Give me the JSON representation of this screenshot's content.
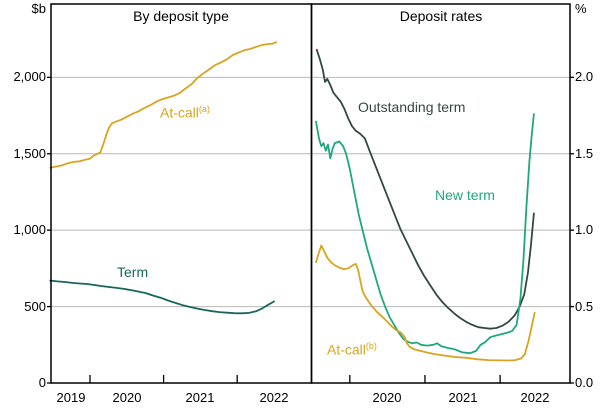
{
  "chart_data": [
    {
      "type": "line",
      "panel": "left",
      "title": "By deposit type",
      "unit": "$b",
      "grid": true,
      "legend_position": "inline-annotations",
      "xlim": [
        2019.47,
        2023.01
      ],
      "ylim": [
        0,
        2480
      ],
      "xticks": [
        2020,
        2021,
        2022
      ],
      "xtick_labels": [
        {
          "year": 2019,
          "label": "2019"
        },
        {
          "year": 2020,
          "label": "2020"
        },
        {
          "year": 2021,
          "label": "2021"
        },
        {
          "year": 2022,
          "label": "2022"
        }
      ],
      "yticks": [
        {
          "value": 0,
          "label": "0"
        },
        {
          "value": 500,
          "label": "500"
        },
        {
          "value": 1000,
          "label": "1,000"
        },
        {
          "value": 1500,
          "label": "1,500"
        },
        {
          "value": 2000,
          "label": "2,000"
        }
      ],
      "series": [
        {
          "name": "at-call-outstanding",
          "label": "At-call",
          "label_sup": "(a)",
          "color": "#D9A421",
          "points": [
            [
              2019.46,
              1408
            ],
            [
              2019.54,
              1417
            ],
            [
              2019.62,
              1424
            ],
            [
              2019.7,
              1438
            ],
            [
              2019.78,
              1447
            ],
            [
              2019.86,
              1451
            ],
            [
              2019.94,
              1462
            ],
            [
              2020.0,
              1468
            ],
            [
              2020.05,
              1488
            ],
            [
              2020.1,
              1500
            ],
            [
              2020.14,
              1508
            ],
            [
              2020.18,
              1560
            ],
            [
              2020.22,
              1622
            ],
            [
              2020.26,
              1672
            ],
            [
              2020.3,
              1700
            ],
            [
              2020.35,
              1710
            ],
            [
              2020.42,
              1722
            ],
            [
              2020.5,
              1742
            ],
            [
              2020.58,
              1762
            ],
            [
              2020.66,
              1778
            ],
            [
              2020.74,
              1800
            ],
            [
              2020.82,
              1818
            ],
            [
              2020.9,
              1840
            ],
            [
              2020.98,
              1857
            ],
            [
              2021.06,
              1868
            ],
            [
              2021.14,
              1880
            ],
            [
              2021.22,
              1898
            ],
            [
              2021.3,
              1928
            ],
            [
              2021.38,
              1956
            ],
            [
              2021.46,
              1996
            ],
            [
              2021.54,
              2026
            ],
            [
              2021.62,
              2052
            ],
            [
              2021.7,
              2080
            ],
            [
              2021.78,
              2098
            ],
            [
              2021.86,
              2118
            ],
            [
              2021.94,
              2146
            ],
            [
              2022.02,
              2162
            ],
            [
              2022.1,
              2178
            ],
            [
              2022.18,
              2186
            ],
            [
              2022.26,
              2200
            ],
            [
              2022.34,
              2212
            ],
            [
              2022.42,
              2218
            ],
            [
              2022.48,
              2220
            ],
            [
              2022.53,
              2230
            ]
          ]
        },
        {
          "name": "term-outstanding",
          "label": "Term",
          "label_sup": "",
          "color": "#17685A",
          "points": [
            [
              2019.46,
              670
            ],
            [
              2019.56,
              665
            ],
            [
              2019.66,
              661
            ],
            [
              2019.76,
              655
            ],
            [
              2019.86,
              651
            ],
            [
              2019.96,
              648
            ],
            [
              2020.06,
              641
            ],
            [
              2020.16,
              634
            ],
            [
              2020.26,
              628
            ],
            [
              2020.36,
              622
            ],
            [
              2020.46,
              616
            ],
            [
              2020.56,
              608
            ],
            [
              2020.66,
              598
            ],
            [
              2020.76,
              588
            ],
            [
              2020.86,
              572
            ],
            [
              2020.96,
              558
            ],
            [
              2021.06,
              540
            ],
            [
              2021.16,
              524
            ],
            [
              2021.26,
              509
            ],
            [
              2021.36,
              497
            ],
            [
              2021.46,
              487
            ],
            [
              2021.56,
              478
            ],
            [
              2021.66,
              470
            ],
            [
              2021.76,
              464
            ],
            [
              2021.86,
              460
            ],
            [
              2021.96,
              457
            ],
            [
              2022.06,
              456
            ],
            [
              2022.16,
              459
            ],
            [
              2022.26,
              470
            ],
            [
              2022.34,
              488
            ],
            [
              2022.42,
              512
            ],
            [
              2022.5,
              533
            ]
          ]
        }
      ]
    },
    {
      "type": "line",
      "panel": "right",
      "title": "Deposit rates",
      "unit": "%",
      "grid": true,
      "legend_position": "inline-annotations",
      "xlim": [
        2019.49,
        2022.93
      ],
      "ylim": [
        0,
        2.48
      ],
      "xticks": [
        2020,
        2021,
        2022
      ],
      "xtick_labels": [
        {
          "year": 2020,
          "label": "2020"
        },
        {
          "year": 2021,
          "label": "2021"
        },
        {
          "year": 2022,
          "label": "2022"
        }
      ],
      "yticks": [
        {
          "value": 0,
          "label": "0.0"
        },
        {
          "value": 0.5,
          "label": "0.5"
        },
        {
          "value": 1.0,
          "label": "1.0"
        },
        {
          "value": 1.5,
          "label": "1.5"
        },
        {
          "value": 2.0,
          "label": "2.0"
        }
      ],
      "series": [
        {
          "name": "outstanding-term-rate",
          "label": "Outstanding term",
          "label_sup": "",
          "color": "#33493F",
          "points": [
            [
              2019.56,
              2.18
            ],
            [
              2019.6,
              2.12
            ],
            [
              2019.64,
              2.05
            ],
            [
              2019.67,
              1.97
            ],
            [
              2019.7,
              1.99
            ],
            [
              2019.74,
              1.95
            ],
            [
              2019.78,
              1.9
            ],
            [
              2019.83,
              1.87
            ],
            [
              2019.88,
              1.84
            ],
            [
              2019.93,
              1.79
            ],
            [
              2019.98,
              1.73
            ],
            [
              2020.03,
              1.68
            ],
            [
              2020.08,
              1.65
            ],
            [
              2020.14,
              1.63
            ],
            [
              2020.2,
              1.6
            ],
            [
              2020.27,
              1.51
            ],
            [
              2020.35,
              1.41
            ],
            [
              2020.43,
              1.31
            ],
            [
              2020.51,
              1.21
            ],
            [
              2020.59,
              1.11
            ],
            [
              2020.67,
              1.01
            ],
            [
              2020.75,
              0.93
            ],
            [
              2020.83,
              0.85
            ],
            [
              2020.91,
              0.77
            ],
            [
              2020.99,
              0.7
            ],
            [
              2021.07,
              0.64
            ],
            [
              2021.15,
              0.58
            ],
            [
              2021.23,
              0.53
            ],
            [
              2021.31,
              0.49
            ],
            [
              2021.39,
              0.455
            ],
            [
              2021.47,
              0.425
            ],
            [
              2021.55,
              0.4
            ],
            [
              2021.63,
              0.38
            ],
            [
              2021.71,
              0.365
            ],
            [
              2021.79,
              0.36
            ],
            [
              2021.87,
              0.355
            ],
            [
              2021.95,
              0.36
            ],
            [
              2022.03,
              0.375
            ],
            [
              2022.11,
              0.4
            ],
            [
              2022.19,
              0.44
            ],
            [
              2022.26,
              0.5
            ],
            [
              2022.32,
              0.58
            ],
            [
              2022.37,
              0.72
            ],
            [
              2022.41,
              0.9
            ],
            [
              2022.45,
              1.11
            ]
          ]
        },
        {
          "name": "new-term-rate",
          "label": "New term",
          "label_sup": "",
          "color": "#1EA87C",
          "points": [
            [
              2019.55,
              1.71
            ],
            [
              2019.59,
              1.6
            ],
            [
              2019.62,
              1.55
            ],
            [
              2019.65,
              1.57
            ],
            [
              2019.68,
              1.52
            ],
            [
              2019.71,
              1.56
            ],
            [
              2019.74,
              1.47
            ],
            [
              2019.77,
              1.53
            ],
            [
              2019.8,
              1.57
            ],
            [
              2019.86,
              1.58
            ],
            [
              2019.91,
              1.55
            ],
            [
              2019.95,
              1.5
            ],
            [
              2020.0,
              1.4
            ],
            [
              2020.06,
              1.25
            ],
            [
              2020.12,
              1.1
            ],
            [
              2020.17,
              1.0
            ],
            [
              2020.23,
              0.88
            ],
            [
              2020.29,
              0.78
            ],
            [
              2020.35,
              0.68
            ],
            [
              2020.41,
              0.58
            ],
            [
              2020.47,
              0.5
            ],
            [
              2020.53,
              0.43
            ],
            [
              2020.59,
              0.38
            ],
            [
              2020.65,
              0.33
            ],
            [
              2020.71,
              0.29
            ],
            [
              2020.77,
              0.27
            ],
            [
              2020.83,
              0.26
            ],
            [
              2020.89,
              0.265
            ],
            [
              2020.95,
              0.25
            ],
            [
              2021.03,
              0.245
            ],
            [
              2021.11,
              0.25
            ],
            [
              2021.16,
              0.26
            ],
            [
              2021.22,
              0.24
            ],
            [
              2021.3,
              0.23
            ],
            [
              2021.4,
              0.22
            ],
            [
              2021.5,
              0.2
            ],
            [
              2021.6,
              0.195
            ],
            [
              2021.68,
              0.21
            ],
            [
              2021.74,
              0.25
            ],
            [
              2021.8,
              0.267
            ],
            [
              2021.87,
              0.3
            ],
            [
              2021.94,
              0.31
            ],
            [
              2022.02,
              0.32
            ],
            [
              2022.1,
              0.33
            ],
            [
              2022.16,
              0.34
            ],
            [
              2022.22,
              0.38
            ],
            [
              2022.27,
              0.55
            ],
            [
              2022.31,
              0.8
            ],
            [
              2022.35,
              1.15
            ],
            [
              2022.39,
              1.45
            ],
            [
              2022.42,
              1.62
            ],
            [
              2022.45,
              1.76
            ]
          ]
        },
        {
          "name": "at-call-rate",
          "label": "At-call",
          "label_sup": "(b)",
          "color": "#D9A421",
          "points": [
            [
              2019.55,
              0.79
            ],
            [
              2019.58,
              0.84
            ],
            [
              2019.62,
              0.9
            ],
            [
              2019.66,
              0.86
            ],
            [
              2019.7,
              0.82
            ],
            [
              2019.75,
              0.79
            ],
            [
              2019.8,
              0.77
            ],
            [
              2019.86,
              0.755
            ],
            [
              2019.92,
              0.745
            ],
            [
              2019.98,
              0.75
            ],
            [
              2020.04,
              0.77
            ],
            [
              2020.08,
              0.78
            ],
            [
              2020.11,
              0.74
            ],
            [
              2020.14,
              0.67
            ],
            [
              2020.17,
              0.6
            ],
            [
              2020.2,
              0.57
            ],
            [
              2020.24,
              0.54
            ],
            [
              2020.29,
              0.505
            ],
            [
              2020.36,
              0.465
            ],
            [
              2020.44,
              0.43
            ],
            [
              2020.5,
              0.4
            ],
            [
              2020.56,
              0.37
            ],
            [
              2020.62,
              0.345
            ],
            [
              2020.68,
              0.33
            ],
            [
              2020.73,
              0.3
            ],
            [
              2020.76,
              0.26
            ],
            [
              2020.8,
              0.235
            ],
            [
              2020.86,
              0.22
            ],
            [
              2020.94,
              0.21
            ],
            [
              2021.02,
              0.2
            ],
            [
              2021.12,
              0.19
            ],
            [
              2021.25,
              0.18
            ],
            [
              2021.4,
              0.17
            ],
            [
              2021.55,
              0.165
            ],
            [
              2021.7,
              0.155
            ],
            [
              2021.85,
              0.15
            ],
            [
              2022.0,
              0.148
            ],
            [
              2022.1,
              0.147
            ],
            [
              2022.2,
              0.15
            ],
            [
              2022.28,
              0.16
            ],
            [
              2022.33,
              0.19
            ],
            [
              2022.38,
              0.28
            ],
            [
              2022.42,
              0.37
            ],
            [
              2022.46,
              0.46
            ]
          ]
        }
      ]
    }
  ],
  "style": {
    "gridline_color": "#b9b9b9",
    "frame_color": "#000000",
    "background": "#ffffff"
  }
}
